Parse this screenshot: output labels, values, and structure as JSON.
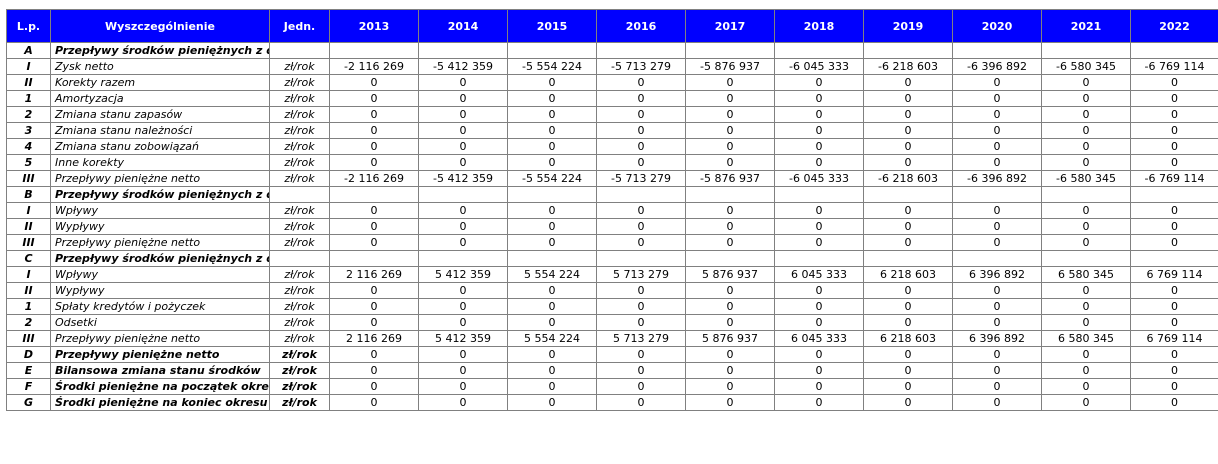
{
  "table": {
    "headers": {
      "lp": "L.p.",
      "desc": "Wyszczególnienie",
      "unit": "Jedn.",
      "years": [
        "2013",
        "2014",
        "2015",
        "2016",
        "2017",
        "2018",
        "2019",
        "2020",
        "2021",
        "2022"
      ]
    },
    "rows": [
      {
        "lp": "A",
        "desc": "Przepływy środków pieniężnych z działalności operacyjnej",
        "unit": "",
        "values": [
          "",
          "",
          "",
          "",
          "",
          "",
          "",
          "",
          "",
          ""
        ],
        "type": "section"
      },
      {
        "lp": "I",
        "desc": "Zysk netto",
        "unit": "zł/rok",
        "values": [
          "-2 116 269",
          "-5 412 359",
          "-5 554 224",
          "-5 713 279",
          "-5 876 937",
          "-6 045 333",
          "-6 218 603",
          "-6 396 892",
          "-6 580 345",
          "-6 769 114"
        ],
        "type": "row"
      },
      {
        "lp": "II",
        "desc": "Korekty razem",
        "unit": "zł/rok",
        "values": [
          "0",
          "0",
          "0",
          "0",
          "0",
          "0",
          "0",
          "0",
          "0",
          "0"
        ],
        "type": "row"
      },
      {
        "lp": "1",
        "desc": "Amortyzacja",
        "unit": "zł/rok",
        "values": [
          "0",
          "0",
          "0",
          "0",
          "0",
          "0",
          "0",
          "0",
          "0",
          "0"
        ],
        "type": "row"
      },
      {
        "lp": "2",
        "desc": "Zmiana stanu zapasów",
        "unit": "zł/rok",
        "values": [
          "0",
          "0",
          "0",
          "0",
          "0",
          "0",
          "0",
          "0",
          "0",
          "0"
        ],
        "type": "row"
      },
      {
        "lp": "3",
        "desc": "Zmiana stanu należności",
        "unit": "zł/rok",
        "values": [
          "0",
          "0",
          "0",
          "0",
          "0",
          "0",
          "0",
          "0",
          "0",
          "0"
        ],
        "type": "row"
      },
      {
        "lp": "4",
        "desc": "Zmiana stanu zobowiązań",
        "unit": "zł/rok",
        "values": [
          "0",
          "0",
          "0",
          "0",
          "0",
          "0",
          "0",
          "0",
          "0",
          "0"
        ],
        "type": "row"
      },
      {
        "lp": "5",
        "desc": "Inne korekty",
        "unit": "zł/rok",
        "values": [
          "0",
          "0",
          "0",
          "0",
          "0",
          "0",
          "0",
          "0",
          "0",
          "0"
        ],
        "type": "row"
      },
      {
        "lp": "III",
        "desc": "Przepływy pieniężne netto",
        "unit": "zł/rok",
        "values": [
          "-2 116 269",
          "-5 412 359",
          "-5 554 224",
          "-5 713 279",
          "-5 876 937",
          "-6 045 333",
          "-6 218 603",
          "-6 396 892",
          "-6 580 345",
          "-6 769 114"
        ],
        "type": "row"
      },
      {
        "lp": "B",
        "desc": "Przepływy środków pieniężnych z działalności inwestycyjnej",
        "unit": "",
        "values": [
          "",
          "",
          "",
          "",
          "",
          "",
          "",
          "",
          "",
          ""
        ],
        "type": "section"
      },
      {
        "lp": "I",
        "desc": "Wpływy",
        "unit": "zł/rok",
        "values": [
          "0",
          "0",
          "0",
          "0",
          "0",
          "0",
          "0",
          "0",
          "0",
          "0"
        ],
        "type": "row"
      },
      {
        "lp": "II",
        "desc": "Wypływy",
        "unit": "zł/rok",
        "values": [
          "0",
          "0",
          "0",
          "0",
          "0",
          "0",
          "0",
          "0",
          "0",
          "0"
        ],
        "type": "row"
      },
      {
        "lp": "III",
        "desc": "Przepływy pieniężne netto",
        "unit": "zł/rok",
        "values": [
          "0",
          "0",
          "0",
          "0",
          "0",
          "0",
          "0",
          "0",
          "0",
          "0"
        ],
        "type": "row"
      },
      {
        "lp": "C",
        "desc": "Przepływy środków pieniężnych z działalności finansowej",
        "unit": "",
        "values": [
          "",
          "",
          "",
          "",
          "",
          "",
          "",
          "",
          "",
          ""
        ],
        "type": "section"
      },
      {
        "lp": "I",
        "desc": "Wpływy",
        "unit": "zł/rok",
        "values": [
          "2 116 269",
          "5 412 359",
          "5 554 224",
          "5 713 279",
          "5 876 937",
          "6 045 333",
          "6 218 603",
          "6 396 892",
          "6 580 345",
          "6 769 114"
        ],
        "type": "row"
      },
      {
        "lp": "II",
        "desc": "Wypływy",
        "unit": "zł/rok",
        "values": [
          "0",
          "0",
          "0",
          "0",
          "0",
          "0",
          "0",
          "0",
          "0",
          "0"
        ],
        "type": "row"
      },
      {
        "lp": "1",
        "desc": "Spłaty kredytów i pożyczek",
        "unit": "zł/rok",
        "values": [
          "0",
          "0",
          "0",
          "0",
          "0",
          "0",
          "0",
          "0",
          "0",
          "0"
        ],
        "type": "row"
      },
      {
        "lp": "2",
        "desc": "Odsetki",
        "unit": "zł/rok",
        "values": [
          "0",
          "0",
          "0",
          "0",
          "0",
          "0",
          "0",
          "0",
          "0",
          "0"
        ],
        "type": "row"
      },
      {
        "lp": "III",
        "desc": "Przepływy pieniężne netto",
        "unit": "zł/rok",
        "values": [
          "2 116 269",
          "5 412 359",
          "5 554 224",
          "5 713 279",
          "5 876 937",
          "6 045 333",
          "6 218 603",
          "6 396 892",
          "6 580 345",
          "6 769 114"
        ],
        "type": "row"
      },
      {
        "lp": "D",
        "desc": "Przepływy pieniężne netto",
        "unit": "zł/rok",
        "values": [
          "0",
          "0",
          "0",
          "0",
          "0",
          "0",
          "0",
          "0",
          "0",
          "0"
        ],
        "type": "sum"
      },
      {
        "lp": "E",
        "desc": "Bilansowa zmiana stanu środków",
        "unit": "zł/rok",
        "values": [
          "0",
          "0",
          "0",
          "0",
          "0",
          "0",
          "0",
          "0",
          "0",
          "0"
        ],
        "type": "sum"
      },
      {
        "lp": "F",
        "desc": "Środki pieniężne na początek okresu",
        "unit": "zł/rok",
        "values": [
          "0",
          "0",
          "0",
          "0",
          "0",
          "0",
          "0",
          "0",
          "0",
          "0"
        ],
        "type": "sum"
      },
      {
        "lp": "G",
        "desc": "Środki pieniężne na koniec okresu",
        "unit": "zł/rok",
        "values": [
          "0",
          "0",
          "0",
          "0",
          "0",
          "0",
          "0",
          "0",
          "0",
          "0"
        ],
        "type": "sum"
      }
    ]
  },
  "colors": {
    "header_bg": "#0000ff",
    "header_text": "#ffffff",
    "border": "#808080"
  }
}
